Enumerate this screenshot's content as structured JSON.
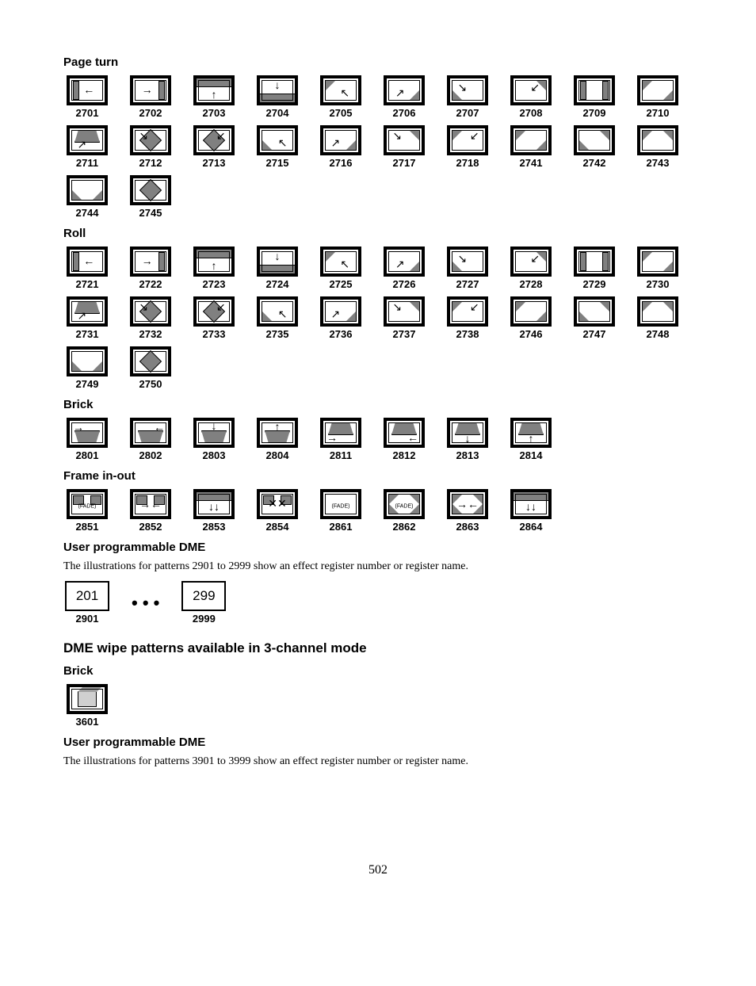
{
  "page_number": "502",
  "sections": [
    {
      "title": "Page turn",
      "rows": [
        [
          "2701",
          "2702",
          "2703",
          "2704",
          "2705",
          "2706",
          "2707",
          "2708",
          "2709",
          "2710"
        ],
        [
          "2711",
          "2712",
          "2713",
          "2715",
          "2716",
          "2717",
          "2718",
          "2741",
          "2742",
          "2743"
        ],
        [
          "2744",
          "2745"
        ]
      ]
    },
    {
      "title": "Roll",
      "rows": [
        [
          "2721",
          "2722",
          "2723",
          "2724",
          "2725",
          "2726",
          "2727",
          "2728",
          "2729",
          "2730"
        ],
        [
          "2731",
          "2732",
          "2733",
          "2735",
          "2736",
          "2737",
          "2738",
          "2746",
          "2747",
          "2748"
        ],
        [
          "2749",
          "2750"
        ]
      ]
    },
    {
      "title": "Brick",
      "rows": [
        [
          "2801",
          "2802",
          "2803",
          "2804",
          "2811",
          "2812",
          "2813",
          "2814"
        ]
      ]
    },
    {
      "title": "Frame in-out",
      "rows": [
        [
          "2851",
          "2852",
          "2853",
          "2854",
          "2861",
          "2862",
          "2863",
          "2864"
        ]
      ]
    }
  ],
  "user_prog_1": {
    "title": "User programmable DME",
    "text": "The illustrations for patterns 2901 to 2999 show an effect register number or register name.",
    "left_box": "201",
    "right_box": "299",
    "left_label": "2901",
    "right_label": "2999",
    "dots": "• • •"
  },
  "heading_3ch": "DME wipe patterns available in 3-channel mode",
  "brick2": {
    "title": "Brick",
    "label": "3601"
  },
  "user_prog_2": {
    "title": "User programmable DME",
    "text": "The illustrations for patterns 3901 to 3999 show an effect register number or register name."
  },
  "icons": {
    "2701": {
      "type": "pageturn",
      "dir": "left",
      "shapes": [
        "vbar-l"
      ],
      "arrow": "←",
      "ax": "55%",
      "ay": "45%"
    },
    "2702": {
      "type": "pageturn",
      "dir": "right",
      "shapes": [
        "vbar-r"
      ],
      "arrow": "→",
      "ax": "40%",
      "ay": "45%"
    },
    "2703": {
      "type": "pageturn",
      "shapes": [
        "top-bar"
      ],
      "arrow": "↑",
      "ax": "50%",
      "ay": "68%"
    },
    "2704": {
      "type": "pageturn",
      "shapes": [
        "bot-bar"
      ],
      "arrow": "↓",
      "ax": "50%",
      "ay": "25%"
    },
    "2705": {
      "type": "pageturn",
      "shapes": [
        "tri-tl"
      ],
      "arrow": "↖",
      "ax": "62%",
      "ay": "60%"
    },
    "2706": {
      "type": "pageturn",
      "shapes": [
        "tri-br"
      ],
      "arrow": "↗",
      "ax": "38%",
      "ay": "60%"
    },
    "2707": {
      "type": "pageturn",
      "shapes": [
        "tri-bl"
      ],
      "arrow": "↘",
      "ax": "35%",
      "ay": "35%"
    },
    "2708": {
      "type": "pageturn",
      "shapes": [
        "tri-tr"
      ],
      "arrow": "↙",
      "ax": "62%",
      "ay": "35%"
    },
    "2709": {
      "type": "pageturn",
      "shapes": [
        "vbar-l",
        "vbar-r"
      ],
      "arrow": "",
      "ax": "50%",
      "ay": "50%"
    },
    "2710": {
      "type": "pageturn",
      "shapes": [
        "tri-tl",
        "tri-br"
      ],
      "arrow": "",
      "ax": "50%",
      "ay": "50%"
    },
    "2711": {
      "type": "pageturn",
      "shapes": [
        "trap-top"
      ],
      "arrow": "↗",
      "ax": "35%",
      "ay": "68%"
    },
    "2712": {
      "type": "pageturn",
      "shapes": [
        "diamond"
      ],
      "arrow": "↘",
      "ax": "30%",
      "ay": "30%"
    },
    "2713": {
      "type": "pageturn",
      "shapes": [
        "diamond"
      ],
      "arrow": "↙",
      "ax": "70%",
      "ay": "30%"
    },
    "2715": {
      "type": "pageturn",
      "shapes": [
        "tri-bl"
      ],
      "arrow": "↖",
      "ax": "65%",
      "ay": "60%"
    },
    "2716": {
      "type": "pageturn",
      "shapes": [
        "tri-br"
      ],
      "arrow": "↗",
      "ax": "35%",
      "ay": "60%"
    },
    "2717": {
      "type": "pageturn",
      "shapes": [
        "tri-tr"
      ],
      "arrow": "↘",
      "ax": "30%",
      "ay": "30%"
    },
    "2718": {
      "type": "pageturn",
      "shapes": [
        "tri-tl"
      ],
      "arrow": "↙",
      "ax": "70%",
      "ay": "30%"
    },
    "2741": {
      "type": "pageturn",
      "shapes": [
        "tri-tl",
        "tri-br"
      ],
      "arrow": "",
      "ax": "50%",
      "ay": "50%"
    },
    "2742": {
      "type": "pageturn",
      "shapes": [
        "tri-tr",
        "tri-bl"
      ],
      "arrow": "",
      "ax": "50%",
      "ay": "50%"
    },
    "2743": {
      "type": "pageturn",
      "shapes": [
        "tri-tl",
        "tri-tr"
      ],
      "arrow": "",
      "ax": "50%",
      "ay": "50%"
    },
    "2744": {
      "type": "pageturn",
      "shapes": [
        "tri-bl",
        "tri-br"
      ],
      "arrow": "",
      "ax": "50%",
      "ay": "50%"
    },
    "2745": {
      "type": "pageturn",
      "shapes": [
        "diamond"
      ],
      "arrow": "",
      "ax": "50%",
      "ay": "50%"
    },
    "2721": {
      "type": "roll",
      "shapes": [
        "vbar-l"
      ],
      "arrow": "←",
      "ax": "55%",
      "ay": "45%"
    },
    "2722": {
      "type": "roll",
      "shapes": [
        "vbar-r"
      ],
      "arrow": "→",
      "ax": "40%",
      "ay": "45%"
    },
    "2723": {
      "type": "roll",
      "shapes": [
        "top-bar"
      ],
      "arrow": "↑",
      "ax": "50%",
      "ay": "68%"
    },
    "2724": {
      "type": "roll",
      "shapes": [
        "bot-bar"
      ],
      "arrow": "↓",
      "ax": "50%",
      "ay": "25%"
    },
    "2725": {
      "type": "roll",
      "shapes": [
        "tri-tl"
      ],
      "arrow": "↖",
      "ax": "62%",
      "ay": "60%"
    },
    "2726": {
      "type": "roll",
      "shapes": [
        "tri-br"
      ],
      "arrow": "↗",
      "ax": "38%",
      "ay": "60%"
    },
    "2727": {
      "type": "roll",
      "shapes": [
        "tri-bl"
      ],
      "arrow": "↘",
      "ax": "35%",
      "ay": "35%"
    },
    "2728": {
      "type": "roll",
      "shapes": [
        "tri-tr"
      ],
      "arrow": "↙",
      "ax": "62%",
      "ay": "35%"
    },
    "2729": {
      "type": "roll",
      "shapes": [
        "vbar-l",
        "vbar-r"
      ],
      "arrow": "",
      "ax": "50%",
      "ay": "50%"
    },
    "2730": {
      "type": "roll",
      "shapes": [
        "tri-tl",
        "tri-br"
      ],
      "arrow": "",
      "ax": "50%",
      "ay": "50%"
    },
    "2731": {
      "type": "roll",
      "shapes": [
        "trap-top"
      ],
      "arrow": "↗",
      "ax": "35%",
      "ay": "68%"
    },
    "2732": {
      "type": "roll",
      "shapes": [
        "diamond"
      ],
      "arrow": "↘",
      "ax": "30%",
      "ay": "30%"
    },
    "2733": {
      "type": "roll",
      "shapes": [
        "diamond"
      ],
      "arrow": "↙",
      "ax": "70%",
      "ay": "30%"
    },
    "2735": {
      "type": "roll",
      "shapes": [
        "tri-bl"
      ],
      "arrow": "↖",
      "ax": "65%",
      "ay": "60%"
    },
    "2736": {
      "type": "roll",
      "shapes": [
        "tri-br"
      ],
      "arrow": "↗",
      "ax": "35%",
      "ay": "60%"
    },
    "2737": {
      "type": "roll",
      "shapes": [
        "tri-tr"
      ],
      "arrow": "↘",
      "ax": "30%",
      "ay": "30%"
    },
    "2738": {
      "type": "roll",
      "shapes": [
        "tri-tl"
      ],
      "arrow": "↙",
      "ax": "70%",
      "ay": "30%"
    },
    "2746": {
      "type": "roll",
      "shapes": [
        "tri-tl",
        "tri-br"
      ],
      "arrow": "",
      "ax": "50%",
      "ay": "50%"
    },
    "2747": {
      "type": "roll",
      "shapes": [
        "tri-tr",
        "tri-bl"
      ],
      "arrow": "",
      "ax": "50%",
      "ay": "50%"
    },
    "2748": {
      "type": "roll",
      "shapes": [
        "tri-tl",
        "tri-tr"
      ],
      "arrow": "",
      "ax": "50%",
      "ay": "50%"
    },
    "2749": {
      "type": "roll",
      "shapes": [
        "tri-bl",
        "tri-br"
      ],
      "arrow": "",
      "ax": "50%",
      "ay": "50%"
    },
    "2750": {
      "type": "roll",
      "shapes": [
        "diamond"
      ],
      "arrow": "",
      "ax": "50%",
      "ay": "50%"
    },
    "2801": {
      "type": "brick",
      "shapes": [
        "trap-bot"
      ],
      "arrow": "→",
      "ax": "25%",
      "ay": "28%"
    },
    "2802": {
      "type": "brick",
      "shapes": [
        "trap-bot"
      ],
      "arrow": "←",
      "ax": "75%",
      "ay": "28%"
    },
    "2803": {
      "type": "brick",
      "shapes": [
        "trap-bot"
      ],
      "arrow": "↓",
      "ax": "50%",
      "ay": "20%"
    },
    "2804": {
      "type": "brick",
      "shapes": [
        "trap-bot"
      ],
      "arrow": "↑",
      "ax": "50%",
      "ay": "22%"
    },
    "2811": {
      "type": "brick",
      "shapes": [
        "trap-top"
      ],
      "arrow": "→",
      "ax": "25%",
      "ay": "70%"
    },
    "2812": {
      "type": "brick",
      "shapes": [
        "trap-top"
      ],
      "arrow": "←",
      "ax": "75%",
      "ay": "70%"
    },
    "2813": {
      "type": "brick",
      "shapes": [
        "trap-top"
      ],
      "arrow": "↓",
      "ax": "50%",
      "ay": "72%"
    },
    "2814": {
      "type": "brick",
      "shapes": [
        "trap-top"
      ],
      "arrow": "↑",
      "ax": "50%",
      "ay": "72%"
    },
    "2851": {
      "type": "frame",
      "shapes": [
        "sq-l",
        "sq-r"
      ],
      "fade": true
    },
    "2852": {
      "type": "frame",
      "shapes": [
        "sq-l",
        "sq-r"
      ],
      "arrow": "→←",
      "ax": "50%",
      "ay": "50%"
    },
    "2853": {
      "type": "frame",
      "shapes": [
        "top-bar"
      ],
      "arrow": "↓↓",
      "ax": "50%",
      "ay": "60%"
    },
    "2854": {
      "type": "frame",
      "shapes": [
        "sq-l",
        "sq-r"
      ],
      "arrow": "✕✕",
      "ax": "50%",
      "ay": "45%"
    },
    "2861": {
      "type": "frame",
      "shapes": [],
      "fade": true
    },
    "2862": {
      "type": "frame",
      "shapes": [
        "tri-tl",
        "tri-tr",
        "tri-bl",
        "tri-br"
      ],
      "fade": true
    },
    "2863": {
      "type": "frame",
      "shapes": [
        "tri-tl",
        "tri-tr",
        "tri-bl",
        "tri-br"
      ],
      "arrow": "→←",
      "ax": "50%",
      "ay": "50%"
    },
    "2864": {
      "type": "frame",
      "shapes": [
        "top-bar"
      ],
      "arrow": "↓↓",
      "ax": "50%",
      "ay": "60%"
    },
    "3601": {
      "type": "brick3d",
      "shapes": [
        "cube"
      ]
    }
  }
}
